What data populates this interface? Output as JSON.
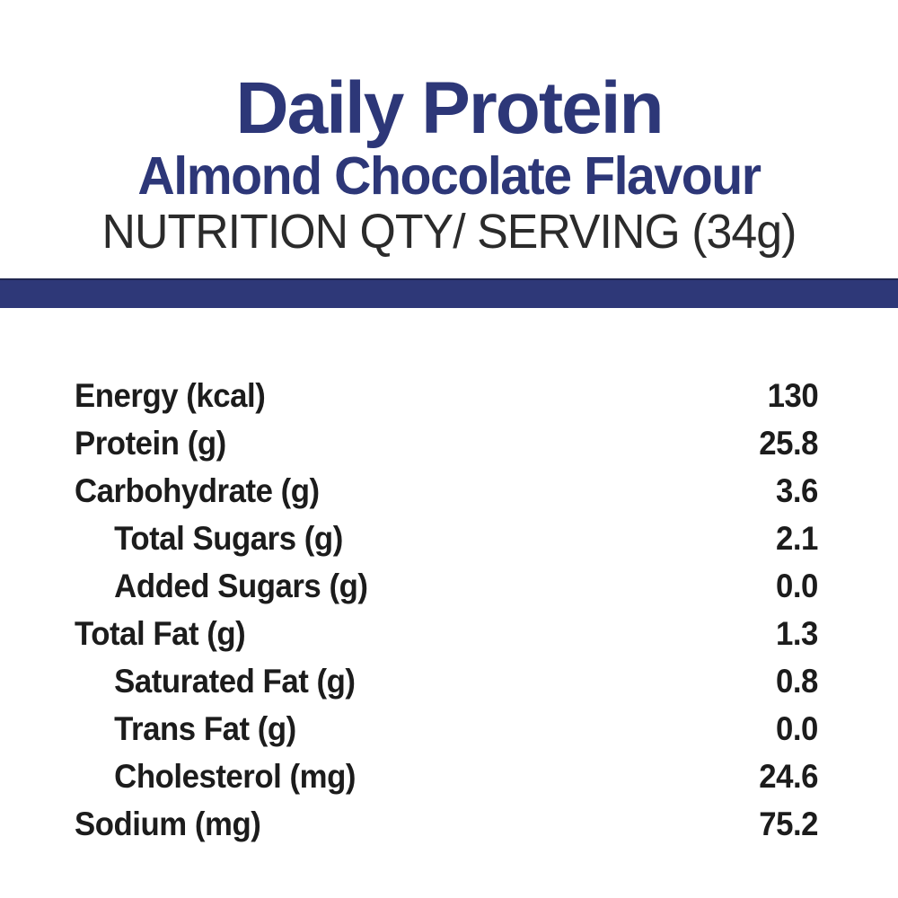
{
  "header": {
    "title": "Daily Protein",
    "subtitle": "Almond Chocolate Flavour",
    "serving_line": "NUTRITION QTY/ SERVING (34g)"
  },
  "colors": {
    "navy_text": "#2d3778",
    "divider_bar": "#2e3878",
    "divider_bar_edge": "#20264f",
    "table_text": "#1c1c1c",
    "background": "#ffffff"
  },
  "table": {
    "rows": [
      {
        "label": "Energy (kcal)",
        "value": "130",
        "indent": false
      },
      {
        "label": "Protein (g)",
        "value": "25.8",
        "indent": false
      },
      {
        "label": "Carbohydrate (g)",
        "value": "3.6",
        "indent": false
      },
      {
        "label": "Total Sugars (g)",
        "value": "2.1",
        "indent": true
      },
      {
        "label": "Added Sugars (g)",
        "value": "0.0",
        "indent": true
      },
      {
        "label": "Total Fat (g)",
        "value": "1.3",
        "indent": false
      },
      {
        "label": "Saturated Fat (g)",
        "value": "0.8",
        "indent": true
      },
      {
        "label": "Trans Fat (g)",
        "value": "0.0",
        "indent": true
      },
      {
        "label": "Cholesterol (mg)",
        "value": "24.6",
        "indent": true
      },
      {
        "label": "Sodium (mg)",
        "value": "75.2",
        "indent": false
      }
    ]
  }
}
